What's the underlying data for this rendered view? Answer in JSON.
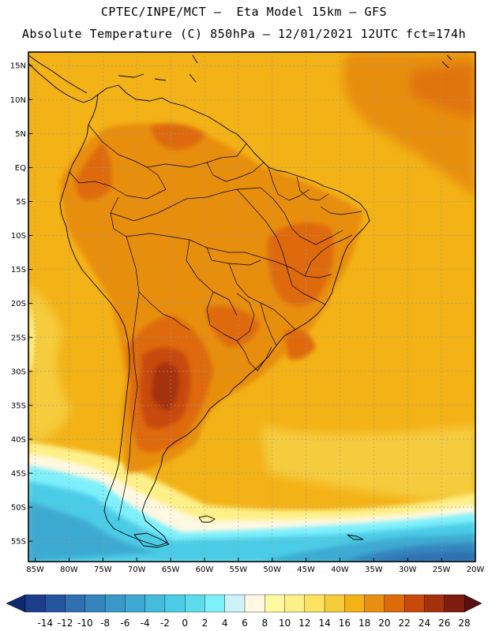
{
  "title": {
    "line1": "CPTEC/INPE/MCT –  Eta Model 15km – GFS",
    "line2": "Absolute Temperature (C) 850hPa – 12/01/2021 12UTC fct=174h"
  },
  "map": {
    "lon_range": [
      -86,
      -20
    ],
    "lat_range": [
      -58,
      17
    ],
    "lat_ticks": [
      "15N",
      "10N",
      "5N",
      "EQ",
      "5S",
      "10S",
      "15S",
      "20S",
      "25S",
      "30S",
      "35S",
      "40S",
      "45S",
      "50S",
      "55S"
    ],
    "lon_ticks": [
      "85W",
      "80W",
      "75W",
      "70W",
      "65W",
      "60W",
      "55W",
      "50W",
      "45W",
      "40W",
      "35W",
      "30W",
      "25W",
      "20W"
    ]
  },
  "colorbar": {
    "labels": [
      "-14",
      "-12",
      "-10",
      "-8",
      "-6",
      "-4",
      "-2",
      "0",
      "2",
      "4",
      "6",
      "8",
      "10",
      "12",
      "14",
      "16",
      "18",
      "20",
      "22",
      "24",
      "26",
      "28"
    ],
    "colors": [
      "#1c3c8c",
      "#2456a0",
      "#2e70b2",
      "#3684be",
      "#3a98c8",
      "#3eaad2",
      "#44bcdc",
      "#4ccce6",
      "#5edcee",
      "#7ef0fc",
      "#cdf3f9",
      "#fff8e2",
      "#fffaa0",
      "#fef088",
      "#fbe260",
      "#f5cc3c",
      "#f3b216",
      "#e88e10",
      "#de6a0a",
      "#c84a08",
      "#a4300c",
      "#7e1c10"
    ]
  }
}
